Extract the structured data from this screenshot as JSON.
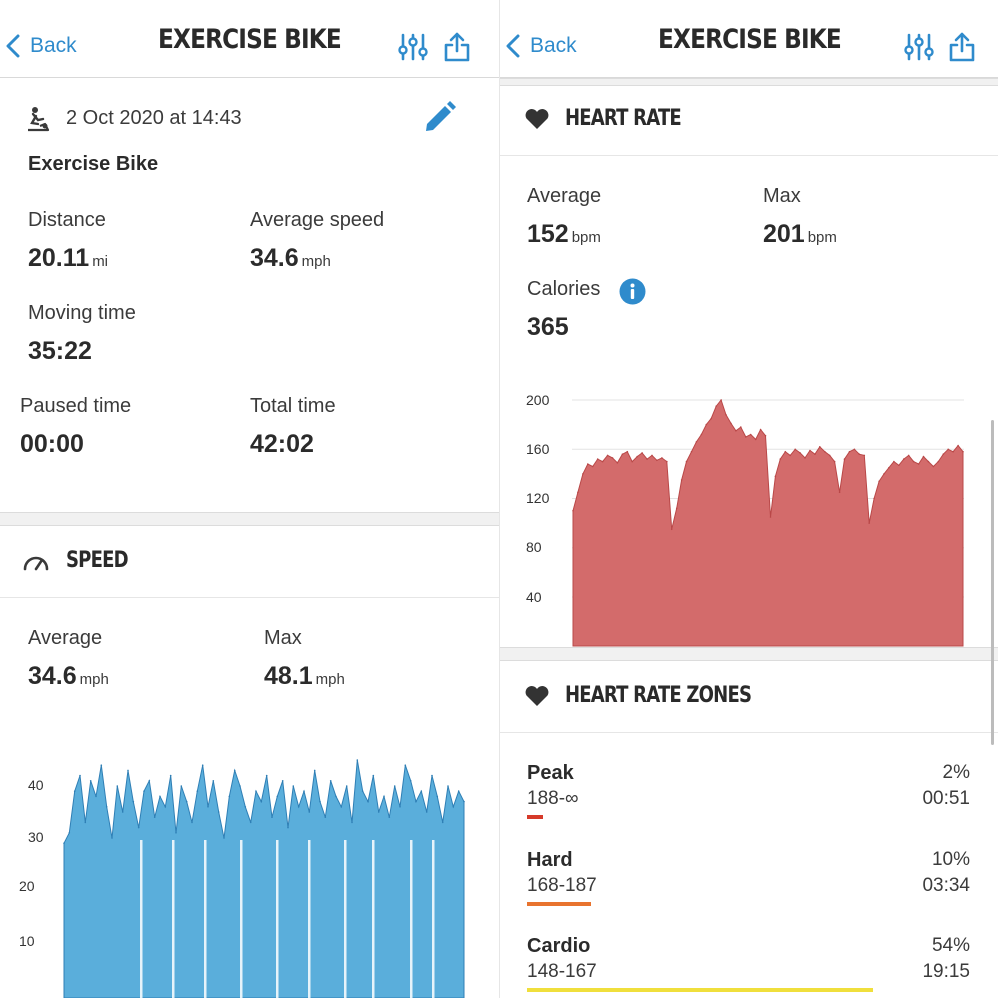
{
  "left": {
    "nav": {
      "back_label": "Back",
      "title": "EXERCISE BIKE"
    },
    "workout": {
      "datetime": "2 Oct 2020 at 14:43",
      "name": "Exercise Bike",
      "distance": {
        "label": "Distance",
        "value": "20.11",
        "unit": "mi"
      },
      "average_speed": {
        "label": "Average speed",
        "value": "34.6",
        "unit": "mph"
      },
      "moving_time": {
        "label": "Moving time",
        "value": "35:22"
      },
      "paused_time": {
        "label": "Paused time",
        "value": "00:00"
      },
      "total_time": {
        "label": "Total time",
        "value": "42:02"
      }
    },
    "speed": {
      "title": "SPEED",
      "average": {
        "label": "Average",
        "value": "34.6",
        "unit": "mph"
      },
      "max": {
        "label": "Max",
        "value": "48.1",
        "unit": "mph"
      },
      "y_ticks": [
        "40",
        "30",
        "20",
        "10"
      ]
    }
  },
  "right": {
    "nav": {
      "back_label": "Back",
      "title": "EXERCISE BIKE"
    },
    "heart_rate": {
      "title": "HEART RATE",
      "average": {
        "label": "Average",
        "value": "152",
        "unit": "bpm"
      },
      "max": {
        "label": "Max",
        "value": "201",
        "unit": "bpm"
      },
      "calories": {
        "label": "Calories",
        "value": "365"
      },
      "y_ticks": [
        "200",
        "160",
        "120",
        "80",
        "40"
      ]
    },
    "zones": {
      "title": "HEART RATE ZONES",
      "items": [
        {
          "name": "Peak",
          "range": "188-∞",
          "percent": "2%",
          "time": "00:51",
          "color": "#d63a2a"
        },
        {
          "name": "Hard",
          "range": "168-187",
          "percent": "10%",
          "time": "03:34",
          "color": "#e8732e"
        },
        {
          "name": "Cardio",
          "range": "148-167",
          "percent": "54%",
          "time": "19:15",
          "color": "#f0df3c"
        }
      ]
    }
  },
  "colors": {
    "accent": "#2f8bcc",
    "speed_fill": "#5aaedb",
    "speed_line": "#2f7fb5",
    "hr_fill": "#d36b6b",
    "hr_line": "#b94848"
  },
  "chart_data": [
    {
      "type": "area",
      "series": [
        {
          "values": [
            29,
            31,
            39,
            42,
            33,
            41,
            38,
            44,
            36,
            30,
            40,
            35,
            43,
            37,
            32,
            39,
            41,
            34,
            38,
            36,
            42,
            31,
            40,
            37,
            33,
            39,
            44,
            36,
            41,
            35,
            30,
            38,
            43,
            40,
            36,
            33,
            39,
            37,
            42,
            34,
            38,
            41,
            32,
            40,
            36,
            39,
            35,
            43,
            37,
            34,
            41,
            38,
            36,
            40,
            33,
            45,
            39,
            37,
            42,
            35,
            38,
            34,
            40,
            36,
            44,
            41,
            37,
            39,
            35,
            42,
            38,
            33,
            40,
            36,
            39,
            37
          ]
        }
      ],
      "y_ticks": [
        10,
        20,
        30,
        40
      ],
      "ylim": [
        0,
        50
      ]
    },
    {
      "type": "area",
      "series": [
        {
          "values": [
            110,
            125,
            140,
            148,
            146,
            152,
            150,
            155,
            153,
            149,
            156,
            158,
            150,
            154,
            157,
            152,
            155,
            151,
            153,
            150,
            95,
            112,
            135,
            150,
            158,
            166,
            172,
            180,
            185,
            195,
            200,
            188,
            181,
            175,
            178,
            170,
            172,
            168,
            176,
            171,
            105,
            138,
            152,
            158,
            155,
            160,
            157,
            153,
            159,
            156,
            162,
            158,
            155,
            150,
            125,
            152,
            158,
            160,
            156,
            155,
            100,
            120,
            134,
            140,
            145,
            150,
            147,
            152,
            155,
            150,
            148,
            154,
            150,
            146,
            150,
            156,
            160,
            158,
            163,
            158
          ]
        }
      ],
      "y_ticks": [
        40,
        80,
        120,
        160,
        200
      ],
      "ylim": [
        0,
        200
      ]
    }
  ]
}
